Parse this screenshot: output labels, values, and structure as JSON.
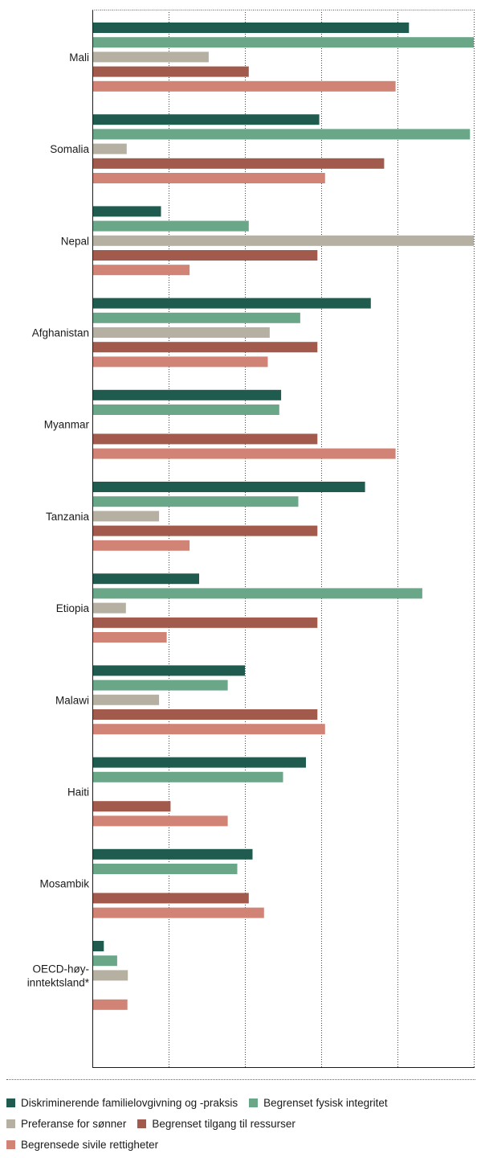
{
  "chart_data": {
    "type": "bar",
    "orientation": "horizontal",
    "categories": [
      "Mali",
      "Somalia",
      "Nepal",
      "Afghanistan",
      "Myanmar",
      "Tanzania",
      "Etiopia",
      "Malawi",
      "Haiti",
      "Mosambik",
      "OECD-høy-\ninntektsland*"
    ],
    "series": [
      {
        "name": "Diskriminerende familielovgivning og -praksis",
        "color": "#1f5c4f",
        "values": [
          0.83,
          0.595,
          0.18,
          0.73,
          0.495,
          0.715,
          0.28,
          0.4,
          0.56,
          0.42,
          0.03
        ]
      },
      {
        "name": "Begrenset fysisk integritet",
        "color": "#6aa688",
        "values": [
          1.0,
          0.99,
          0.41,
          0.545,
          0.49,
          0.54,
          0.865,
          0.355,
          0.5,
          0.38,
          0.065
        ]
      },
      {
        "name": "Preferanse for sønner",
        "color": "#b5b0a2",
        "values": [
          0.305,
          0.09,
          1.0,
          0.465,
          null,
          0.175,
          0.088,
          0.175,
          null,
          null,
          0.093
        ]
      },
      {
        "name": "Begrenset tilgang til ressurser",
        "color": "#a15a4b",
        "values": [
          0.41,
          0.765,
          0.59,
          0.59,
          0.59,
          0.59,
          0.59,
          0.59,
          0.205,
          0.41,
          null
        ]
      },
      {
        "name": "Begrensede sivile rettigheter",
        "color": "#d18476",
        "values": [
          0.795,
          0.61,
          0.255,
          0.46,
          0.795,
          0.255,
          0.195,
          0.61,
          0.355,
          0.45,
          0.092
        ]
      }
    ],
    "xlim": [
      0,
      1.0
    ],
    "xticks": [
      0.0,
      0.2,
      0.4,
      0.6,
      0.8,
      1.0
    ],
    "xtick_labels": [
      "0,0",
      "0,2",
      "0,4",
      "0,6",
      "0,8",
      "1,0"
    ],
    "grid": "vertical dotted",
    "legend_position": "bottom"
  }
}
